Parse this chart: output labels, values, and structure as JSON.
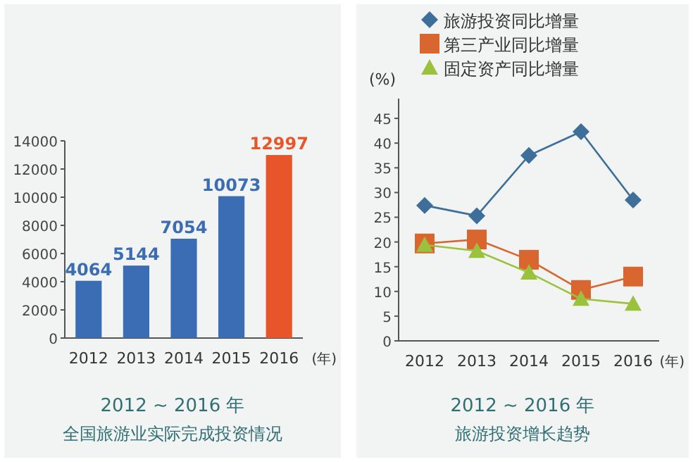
{
  "chart_data": [
    {
      "type": "bar",
      "title": "2012 ~ 2016 年",
      "subtitle": "全国旅游业实际完成投资情况",
      "xlabel": "(年)",
      "categories": [
        "2012",
        "2013",
        "2014",
        "2015",
        "2016"
      ],
      "values": [
        4064,
        5144,
        7054,
        10073,
        12997
      ],
      "colors": [
        "#3a6db3",
        "#3a6db3",
        "#3a6db3",
        "#3a6db3",
        "#e8552a"
      ],
      "ylim": [
        0,
        14000
      ],
      "yticks": [
        0,
        2000,
        4000,
        6000,
        8000,
        10000,
        12000,
        14000
      ],
      "data_labels": true,
      "grid": false,
      "legend": false
    },
    {
      "type": "line",
      "title": "2012 ~ 2016 年",
      "subtitle": "旅游投资增长趋势",
      "xlabel": "(年)",
      "ylabel": "(%)",
      "categories": [
        "2012",
        "2013",
        "2014",
        "2015",
        "2016"
      ],
      "series": [
        {
          "name": "旅游投资同比增量",
          "color": "#3d6f9a",
          "marker": "diamond",
          "values": [
            27.4,
            25.3,
            37.5,
            42.3,
            28.5
          ]
        },
        {
          "name": "第三产业同比增量",
          "color": "#d9662e",
          "marker": "square",
          "values": [
            19.7,
            20.5,
            16.4,
            10.3,
            13.0
          ]
        },
        {
          "name": "固定资产同比增量",
          "color": "#9bc23c",
          "marker": "triangle",
          "values": [
            19.4,
            18.2,
            13.8,
            8.5,
            7.5
          ]
        }
      ],
      "ylim": [
        0,
        49
      ],
      "yticks": [
        0,
        5,
        10,
        15,
        20,
        25,
        30,
        35,
        40,
        45
      ],
      "grid": false,
      "legend": "top"
    }
  ]
}
